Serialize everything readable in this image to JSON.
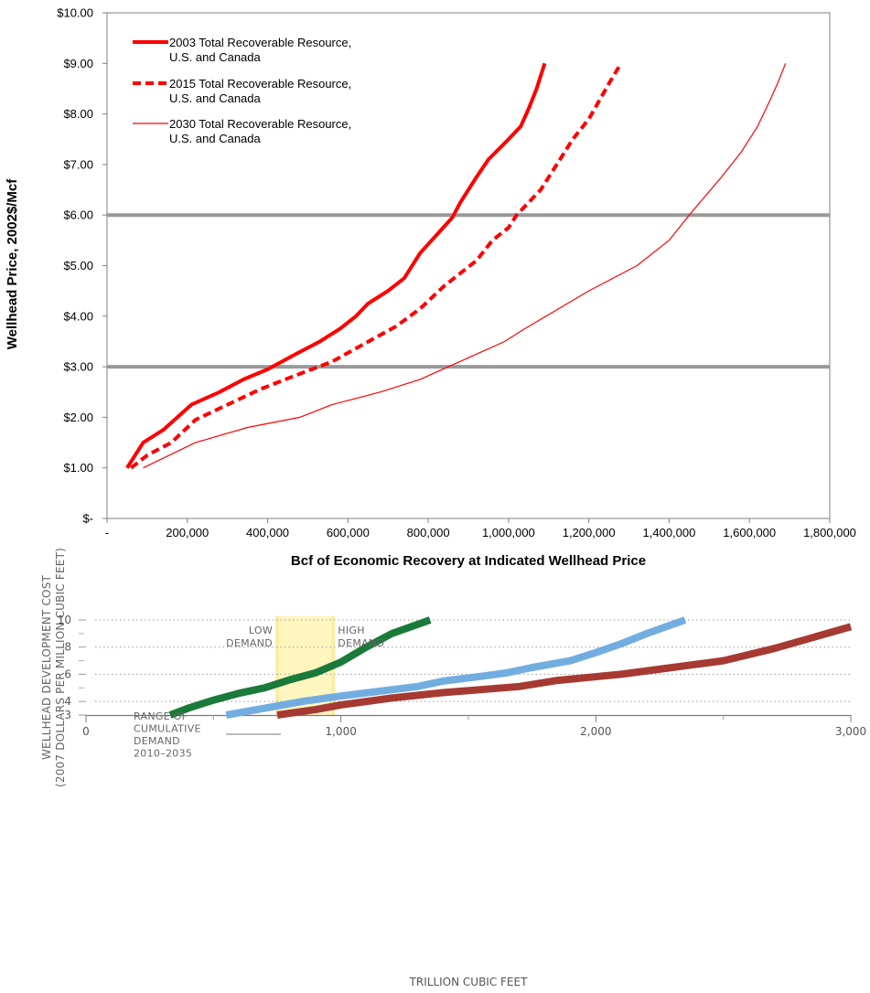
{
  "chart_data": [
    {
      "type": "line",
      "title": "",
      "xlabel": "Bcf of Economic Recovery at Indicated Wellhead Price",
      "ylabel": "Wellhead Price, 2002$/Mcf",
      "xlim": [
        0,
        1800000
      ],
      "ylim": [
        0,
        10
      ],
      "x_ticks": [
        0,
        200000,
        400000,
        600000,
        800000,
        1000000,
        1200000,
        1400000,
        1600000,
        1800000
      ],
      "x_tick_labels": [
        "-",
        "200,000",
        "400,000",
        "600,000",
        "800,000",
        "1,000,000",
        "1,200,000",
        "1,400,000",
        "1,600,000",
        "1,800,000"
      ],
      "y_ticks": [
        0,
        1,
        2,
        3,
        4,
        5,
        6,
        7,
        8,
        9,
        10
      ],
      "y_tick_labels": [
        "$-",
        "$1.00",
        "$2.00",
        "$3.00",
        "$4.00",
        "$5.00",
        "$6.00",
        "$7.00",
        "$8.00",
        "$9.00",
        "$10.00"
      ],
      "reference_lines": [
        {
          "y": 3.0,
          "color": "#999999"
        },
        {
          "y": 6.0,
          "color": "#999999"
        }
      ],
      "grid": false,
      "legend_position": "top-left",
      "series": [
        {
          "name": "2003 Total Recoverable Resource, U.S. and Canada",
          "label_lines": [
            "2003 Total Recoverable Resource,",
            "U.S. and Canada"
          ],
          "color": "#ff0000",
          "style": "solid-thick",
          "points": [
            [
              50000,
              1.0
            ],
            [
              90000,
              1.5
            ],
            [
              140000,
              1.75
            ],
            [
              210000,
              2.25
            ],
            [
              280000,
              2.5
            ],
            [
              340000,
              2.75
            ],
            [
              400000,
              2.95
            ],
            [
              470000,
              3.25
            ],
            [
              530000,
              3.5
            ],
            [
              580000,
              3.75
            ],
            [
              620000,
              4.0
            ],
            [
              650000,
              4.25
            ],
            [
              700000,
              4.5
            ],
            [
              740000,
              4.75
            ],
            [
              780000,
              5.25
            ],
            [
              820000,
              5.6
            ],
            [
              860000,
              5.95
            ],
            [
              880000,
              6.25
            ],
            [
              920000,
              6.75
            ],
            [
              950000,
              7.1
            ],
            [
              1000000,
              7.5
            ],
            [
              1030000,
              7.75
            ],
            [
              1050000,
              8.1
            ],
            [
              1070000,
              8.5
            ],
            [
              1080000,
              8.75
            ],
            [
              1090000,
              9.0
            ]
          ]
        },
        {
          "name": "2015 Total Recoverable Resource, U.S. and Canada",
          "label_lines": [
            "2015 Total Recoverable Resource,",
            "U.S. and Canada"
          ],
          "color": "#ff0000",
          "style": "dashed",
          "points": [
            [
              60000,
              1.0
            ],
            [
              100000,
              1.25
            ],
            [
              160000,
              1.5
            ],
            [
              220000,
              1.95
            ],
            [
              300000,
              2.25
            ],
            [
              380000,
              2.55
            ],
            [
              460000,
              2.8
            ],
            [
              560000,
              3.1
            ],
            [
              640000,
              3.45
            ],
            [
              720000,
              3.8
            ],
            [
              780000,
              4.15
            ],
            [
              840000,
              4.6
            ],
            [
              920000,
              5.1
            ],
            [
              960000,
              5.5
            ],
            [
              1000000,
              5.75
            ],
            [
              1020000,
              6.0
            ],
            [
              1080000,
              6.5
            ],
            [
              1120000,
              7.0
            ],
            [
              1160000,
              7.5
            ],
            [
              1200000,
              7.9
            ],
            [
              1250000,
              8.6
            ],
            [
              1280000,
              9.0
            ]
          ]
        },
        {
          "name": "2030 Total Recoverable Resource, U.S. and Canada",
          "label_lines": [
            "2030 Total Recoverable Resource,",
            "U.S. and Canada"
          ],
          "color": "#ff0000",
          "style": "solid-thin",
          "points": [
            [
              90000,
              1.0
            ],
            [
              220000,
              1.5
            ],
            [
              350000,
              1.8
            ],
            [
              480000,
              2.0
            ],
            [
              560000,
              2.25
            ],
            [
              680000,
              2.5
            ],
            [
              780000,
              2.75
            ],
            [
              850000,
              3.0
            ],
            [
              990000,
              3.5
            ],
            [
              1040000,
              3.75
            ],
            [
              1200000,
              4.5
            ],
            [
              1320000,
              5.0
            ],
            [
              1400000,
              5.5
            ],
            [
              1450000,
              6.0
            ],
            [
              1530000,
              6.75
            ],
            [
              1580000,
              7.25
            ],
            [
              1620000,
              7.75
            ],
            [
              1650000,
              8.25
            ],
            [
              1670000,
              8.6
            ],
            [
              1690000,
              9.0
            ]
          ]
        }
      ]
    },
    {
      "type": "line",
      "title": "",
      "xlabel": "TRILLION CUBIC FEET",
      "ylabel": "WELLHEAD DEVELOPMENT COST",
      "ylabel_line2": "(2007 DOLLARS PER MILLION CUBIC FEET)",
      "xlim": [
        0,
        3000
      ],
      "ylim": [
        3,
        10
      ],
      "x_ticks": [
        0,
        1000,
        2000,
        3000
      ],
      "x_tick_labels": [
        "0",
        "1,000",
        "2,000",
        "3,000"
      ],
      "y_ticks": [
        3,
        4,
        6,
        8,
        10
      ],
      "y_tick_labels": [
        "3",
        "4",
        "6",
        "8",
        "10"
      ],
      "y_minor_ticks": [
        5,
        7,
        9
      ],
      "x_minor_ticks": [
        500,
        1500,
        2500
      ],
      "grid": "dotted-horizontal",
      "demand_band": {
        "low_x": 750,
        "high_x": 970,
        "color": "#fff6bf",
        "low_label": [
          "LOW",
          "DEMAND"
        ],
        "high_label": [
          "HIGH",
          "DEMAND"
        ]
      },
      "annotation": [
        "RANGE OF",
        "CUMULATIVE",
        "DEMAND",
        "2010–2035"
      ],
      "series": [
        {
          "color": "#1a7a3a",
          "points": [
            [
              330,
              3.0
            ],
            [
              400,
              3.5
            ],
            [
              500,
              4.1
            ],
            [
              600,
              4.6
            ],
            [
              700,
              5.0
            ],
            [
              800,
              5.6
            ],
            [
              900,
              6.1
            ],
            [
              1000,
              6.9
            ],
            [
              1100,
              8.0
            ],
            [
              1200,
              9.0
            ],
            [
              1350,
              10.0
            ]
          ]
        },
        {
          "color": "#72ade0",
          "points": [
            [
              550,
              3.0
            ],
            [
              700,
              3.5
            ],
            [
              850,
              4.0
            ],
            [
              1000,
              4.4
            ],
            [
              1150,
              4.75
            ],
            [
              1300,
              5.1
            ],
            [
              1400,
              5.5
            ],
            [
              1550,
              5.85
            ],
            [
              1650,
              6.1
            ],
            [
              1750,
              6.5
            ],
            [
              1900,
              7.0
            ],
            [
              2000,
              7.6
            ],
            [
              2100,
              8.25
            ],
            [
              2200,
              9.0
            ],
            [
              2350,
              10.0
            ]
          ]
        },
        {
          "color": "#a63a32",
          "points": [
            [
              750,
              3.0
            ],
            [
              900,
              3.4
            ],
            [
              1000,
              3.75
            ],
            [
              1200,
              4.25
            ],
            [
              1400,
              4.65
            ],
            [
              1700,
              5.1
            ],
            [
              1850,
              5.55
            ],
            [
              2100,
              6.0
            ],
            [
              2300,
              6.5
            ],
            [
              2500,
              7.0
            ],
            [
              2700,
              7.9
            ],
            [
              2850,
              8.7
            ],
            [
              3000,
              9.5
            ]
          ]
        }
      ]
    }
  ]
}
